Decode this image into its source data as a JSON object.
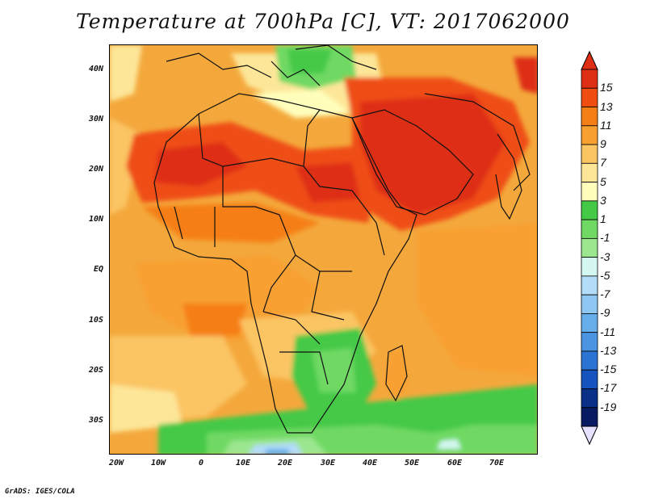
{
  "title": "Temperature at 700hPa [C], VT: 2017062000",
  "credit": "GrADS: IGES/COLA",
  "map": {
    "lat_labels": [
      "40N",
      "30N",
      "20N",
      "10N",
      "EQ",
      "10S",
      "20S",
      "30S"
    ],
    "lon_labels": [
      "20W",
      "10W",
      "0",
      "10E",
      "20E",
      "30E",
      "40E",
      "50E",
      "60E",
      "70E"
    ]
  },
  "colorbar": {
    "labels": [
      "15",
      "13",
      "11",
      "9",
      "7",
      "5",
      "3",
      "1",
      "-1",
      "-3",
      "-5",
      "-7",
      "-9",
      "-11",
      "-13",
      "-15",
      "-17",
      "-19"
    ],
    "colors": [
      "#de2e14",
      "#ef4d12",
      "#f57f17",
      "#f8a030",
      "#fbc563",
      "#fde698",
      "#fffebb",
      "#44c946",
      "#6fd963",
      "#9be68f",
      "#d4f7f1",
      "#b2dcf8",
      "#8ec7f1",
      "#66aeea",
      "#4a94e2",
      "#2a74d4",
      "#1653be",
      "#0a2f87",
      "#071a62"
    ],
    "over_color": "#de2e14",
    "under_color": "#e6e1ff"
  }
}
